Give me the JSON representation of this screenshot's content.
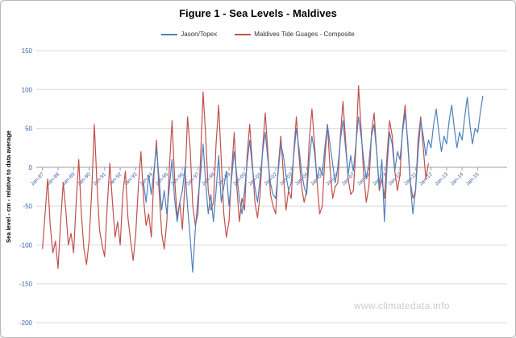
{
  "title": "Figure 1 - Sea Levels - Maldives",
  "watermark": "www.climatedata.info",
  "legend": {
    "items": [
      {
        "label": "Jason/Topex",
        "color": "#4F81BD"
      },
      {
        "label": "Maldives Tide Guages - Composite",
        "color": "#C0504D"
      }
    ]
  },
  "colors": {
    "grid": "#d9d9d9",
    "axis": "#9a9a9a",
    "tick_label": "#3c63a6",
    "series_blue": "#4F81BD",
    "series_red": "#C0504D",
    "watermark": "#cccccc"
  },
  "chart_data": {
    "type": "line",
    "title": "Figure 1 - Sea Levels - Maldives",
    "xlabel": "",
    "ylabel": "Sea level - cm - relative to data average",
    "ylim": [
      -200,
      150
    ],
    "y_tick_values": [
      150,
      100,
      50,
      0,
      -50,
      -100,
      -150,
      -200
    ],
    "xlim": [
      1986.6,
      2016.9
    ],
    "x_tick_years": [
      1987,
      1988,
      1989,
      1990,
      1991,
      1992,
      1993,
      1994,
      1995,
      1996,
      1997,
      1998,
      1999,
      2000,
      2001,
      2002,
      2003,
      2004,
      2005,
      2006,
      2007,
      2008,
      2009,
      2010,
      2011,
      2012,
      2013,
      2014,
      2015
    ],
    "x_tick_labels": [
      "Jan-87",
      "Jan-88",
      "Jan-89",
      "Jan-90",
      "Jan-91",
      "Jan-92",
      "Jan-93",
      "Jan-94",
      "Jan-95",
      "Jan-96",
      "Jan-97",
      "Jan-98",
      "Jan-99",
      "Jan-00",
      "Jan-01",
      "Jan-02",
      "Jan-03",
      "Jan-04",
      "Jan-05",
      "Jan-06",
      "Jan-07",
      "Jan-08",
      "Jan-09",
      "Jan-10",
      "Jan-11",
      "Jan-12",
      "Jan-13",
      "Jan-14",
      "Jan-15"
    ],
    "grid": true,
    "legend_position": "top",
    "series": [
      {
        "name": "Maldives Tide Guages - Composite",
        "color": "#C0504D",
        "start_year": 1987.0,
        "step_years": 0.1667,
        "values": [
          -105,
          -60,
          -15,
          -75,
          -110,
          -95,
          -130,
          -70,
          -20,
          -55,
          -100,
          -85,
          -110,
          -45,
          10,
          -60,
          -105,
          -125,
          -95,
          -30,
          55,
          -20,
          -80,
          -100,
          -115,
          -50,
          5,
          -45,
          -90,
          -70,
          -100,
          -35,
          -5,
          -65,
          -95,
          -120,
          -85,
          -25,
          20,
          -40,
          -75,
          -60,
          -90,
          -10,
          35,
          -30,
          -85,
          -105,
          -70,
          0,
          60,
          -15,
          -65,
          -45,
          -80,
          -20,
          65,
          25,
          -50,
          -75,
          -60,
          10,
          97,
          40,
          -30,
          -55,
          -45,
          30,
          80,
          10,
          -60,
          -90,
          -70,
          -5,
          45,
          -25,
          -70,
          -40,
          -55,
          15,
          55,
          5,
          -45,
          -65,
          -35,
          25,
          70,
          20,
          -35,
          -50,
          -60,
          0,
          40,
          -10,
          -55,
          -30,
          -40,
          20,
          65,
          15,
          -25,
          -45,
          -30,
          35,
          75,
          30,
          -20,
          -60,
          -50,
          10,
          55,
          0,
          -40,
          -25,
          -20,
          40,
          85,
          35,
          -15,
          -35,
          -30,
          25,
          105,
          50,
          -10,
          -45,
          -25,
          45,
          70,
          20,
          -30,
          -15,
          -40,
          15,
          60,
          40,
          -5,
          -30,
          -10,
          50,
          80,
          30,
          -20,
          -40,
          -30,
          35,
          65,
          25,
          -15,
          5
        ]
      },
      {
        "name": "Jason/Topex",
        "color": "#4F81BD",
        "start_year": 1993.5,
        "step_years": 0.1667,
        "values": [
          -20,
          -45,
          -10,
          -35,
          -5,
          25,
          -15,
          -55,
          -30,
          -60,
          -25,
          10,
          -40,
          -70,
          -45,
          -30,
          0,
          -50,
          -90,
          -135,
          -80,
          -40,
          -10,
          30,
          -20,
          -60,
          -35,
          -70,
          -30,
          15,
          -45,
          -25,
          -5,
          -50,
          -15,
          20,
          -10,
          -40,
          -60,
          -30,
          5,
          35,
          0,
          -25,
          -45,
          -15,
          20,
          45,
          10,
          -20,
          -35,
          -40,
          -5,
          30,
          15,
          -10,
          -30,
          -20,
          15,
          50,
          25,
          -5,
          -25,
          -35,
          10,
          40,
          20,
          -15,
          0,
          -10,
          25,
          55,
          30,
          5,
          -20,
          0,
          35,
          60,
          25,
          -10,
          15,
          -5,
          30,
          65,
          40,
          10,
          -15,
          5,
          40,
          55,
          20,
          -25,
          10,
          -70,
          0,
          45,
          30,
          -5,
          20,
          10,
          45,
          70,
          35,
          -20,
          -60,
          -30,
          20,
          60,
          40,
          15,
          35,
          25,
          55,
          75,
          45,
          20,
          40,
          30,
          60,
          80,
          50,
          25,
          45,
          35,
          65,
          90,
          55,
          30,
          50,
          45,
          70,
          92
        ]
      }
    ]
  }
}
